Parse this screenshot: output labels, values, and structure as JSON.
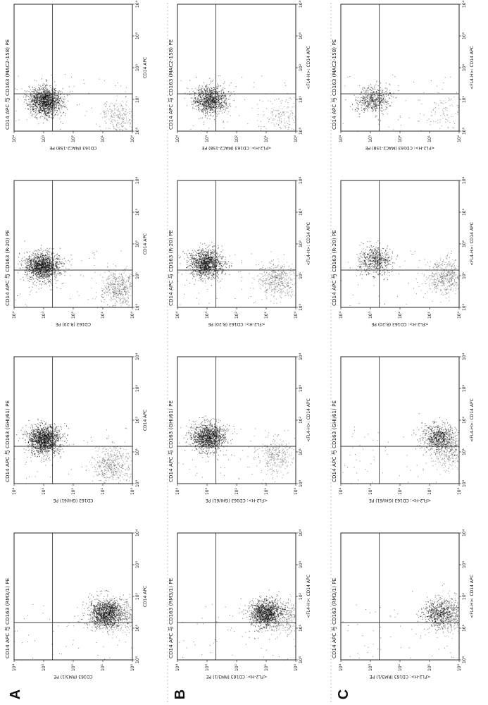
{
  "figure": {
    "rows": [
      {
        "label": "A",
        "panels": [
          {
            "title": "CD14 APC 与 CD163 (MAC2-158) PE",
            "xlabel": "CD14 APC",
            "ylabel": "CD163 (MAC2-158) PE"
          },
          {
            "title": "CD14 APC 与 CD163 (R-20) PE",
            "xlabel": "CD14 APC",
            "ylabel": "CD163 (R-20) PE"
          },
          {
            "title": "CD14 APC 与 CD163 (GHI/61) PE",
            "xlabel": "CD14 APC",
            "ylabel": "CD163 (GHI/61) PE"
          },
          {
            "title": "CD14 APC 与 CD163 (RM3/1) PE",
            "xlabel": "CD14 APC",
            "ylabel": "CD163 (RM3/1) PE"
          }
        ]
      },
      {
        "label": "B",
        "panels": [
          {
            "title": "CD14 APC 与 CD163 (MAC2-158) PE",
            "xlabel": "<FL4-H>: CD14 APC",
            "ylabel": "<FL2-H>: CD163 (MAC2-158) PE"
          },
          {
            "title": "CD14 APC 与 CD163 (R-20) PE",
            "xlabel": "<FL4-H>: CD14 APC",
            "ylabel": "<FL2-H>: CD163 (R-20) PE"
          },
          {
            "title": "CD14 APC 与 CD163 (GHI/61) PE",
            "xlabel": "<FL4-H>: CD14 APC",
            "ylabel": "<FL2-H>: CD163 (GHI/61) PE"
          },
          {
            "title": "CD14 APC 与 CD163 (RM3/1) PE",
            "xlabel": "<FL4-H>: CD14 APC",
            "ylabel": "<FL2-H>: CD163 (RM3/1) PE"
          }
        ]
      },
      {
        "label": "C",
        "panels": [
          {
            "title": "CD14 APC 与 CD163 (MAC2-158) PE",
            "xlabel": "<FL4-H>: CD14 APC",
            "ylabel": "<FL2-H>: CD163 (MAC2-158) PE"
          },
          {
            "title": "CD14 APC 与 CD163 (R-20) PE",
            "xlabel": "<FL4-H>: CD14 APC",
            "ylabel": "<FL2-H>: CD163 (R-20) PE"
          },
          {
            "title": "CD14 APC 与 CD163 (GHI/61) PE",
            "xlabel": "<FL4-H>: CD14 APC",
            "ylabel": "<FL2-H>: CD163 (GHI/61) PE"
          },
          {
            "title": "CD14 APC 与 CD163 (RM3/1) PE",
            "xlabel": "<FL4-H>: CD14 APC",
            "ylabel": "<FL2-H>: CD163 (RM3/1) PE"
          }
        ]
      }
    ]
  },
  "chart_data": {
    "type": "scatter",
    "orientation": "rotated 90° counter-clockwise",
    "xscale": "log",
    "yscale": "log",
    "xlim": [
      1,
      10000
    ],
    "ylim": [
      1,
      10000
    ],
    "ticks": [
      "10⁰",
      "10¹",
      "10²",
      "10³",
      "10⁴"
    ],
    "gate": {
      "x": 15,
      "y": 500
    },
    "clusters": [
      {
        "panel": "A1",
        "main": {
          "x": 9,
          "y": 900,
          "n": 1400
        },
        "neg": {
          "x": 3,
          "y": 3,
          "n": 220
        }
      },
      {
        "panel": "A2",
        "main": {
          "x": 20,
          "y": 1100,
          "n": 1400
        },
        "neg": {
          "x": 4,
          "y": 3,
          "n": 500
        }
      },
      {
        "panel": "A3",
        "main": {
          "x": 25,
          "y": 1000,
          "n": 1400
        },
        "neg": {
          "x": 4,
          "y": 5,
          "n": 450
        }
      },
      {
        "panel": "A4",
        "main": {
          "x": 30,
          "y": 8,
          "n": 1200
        },
        "neg": {
          "x": 25,
          "y": 2,
          "n": 300
        }
      },
      {
        "panel": "B1",
        "main": {
          "x": 10,
          "y": 800,
          "n": 1000
        },
        "neg": {
          "x": 3,
          "y": 3,
          "n": 150
        }
      },
      {
        "panel": "B2",
        "main": {
          "x": 25,
          "y": 1100,
          "n": 1200
        },
        "neg": {
          "x": 8,
          "y": 4,
          "n": 450
        }
      },
      {
        "panel": "B3",
        "main": {
          "x": 30,
          "y": 900,
          "n": 1200
        },
        "neg": {
          "x": 8,
          "y": 5,
          "n": 300
        }
      },
      {
        "panel": "B4",
        "main": {
          "x": 30,
          "y": 10,
          "n": 1200
        },
        "neg": {
          "x": 25,
          "y": 2,
          "n": 300
        }
      },
      {
        "panel": "C1",
        "main": {
          "x": 10,
          "y": 800,
          "n": 500
        },
        "neg": {
          "x": 4,
          "y": 3,
          "n": 80
        }
      },
      {
        "panel": "C2",
        "main": {
          "x": 30,
          "y": 700,
          "n": 550
        },
        "neg": {
          "x": 10,
          "y": 3,
          "n": 500
        }
      },
      {
        "panel": "C3",
        "main": {
          "x": 30,
          "y": 5,
          "n": 650
        },
        "neg": {
          "x": 10,
          "y": 2,
          "n": 350
        }
      },
      {
        "panel": "C4",
        "main": {
          "x": 30,
          "y": 5,
          "n": 500
        },
        "neg": {
          "x": 25,
          "y": 2,
          "n": 450
        }
      }
    ]
  }
}
